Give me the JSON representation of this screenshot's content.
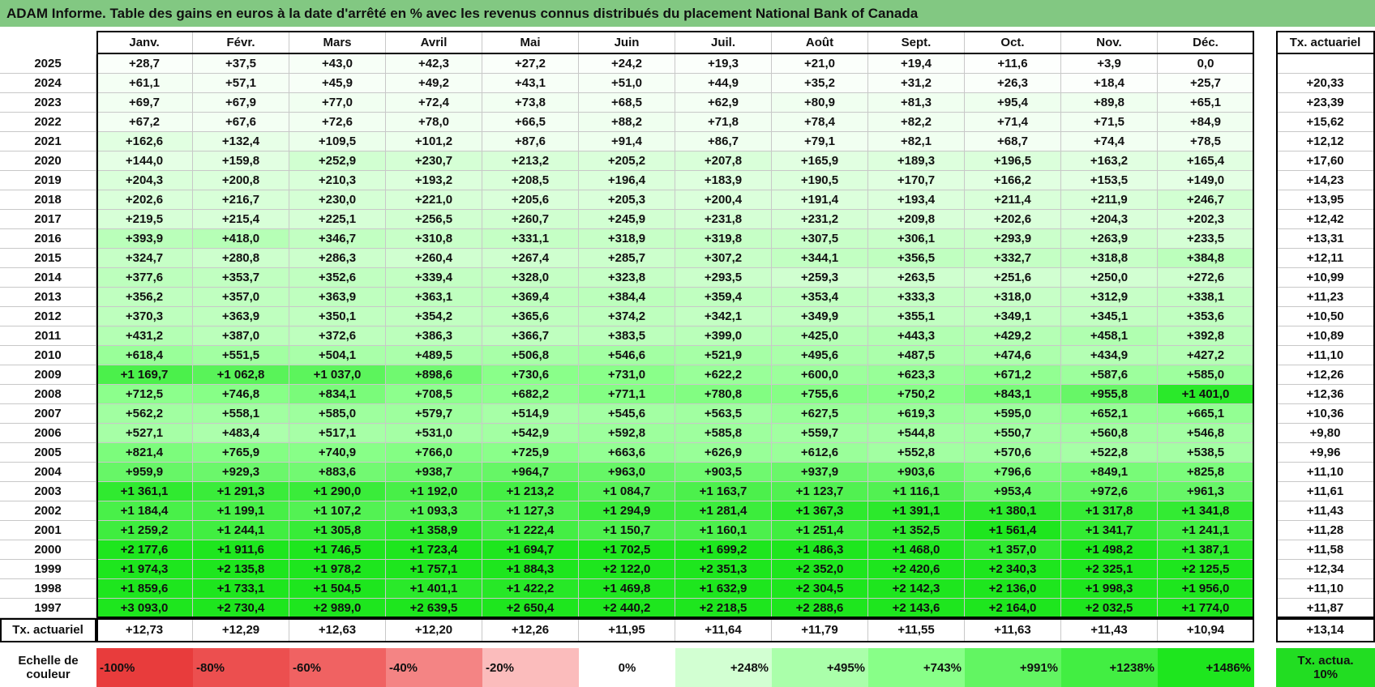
{
  "title": "ADAM Informe. Table des gains en euros à la date d'arrêté en % avec les revenus connus distribués du placement National Bank of Canada",
  "header": {
    "months": [
      "Janv.",
      "Févr.",
      "Mars",
      "Avril",
      "Mai",
      "Juin",
      "Juil.",
      "Août",
      "Sept.",
      "Oct.",
      "Nov.",
      "Déc."
    ],
    "rate_label": "Tx. actuariel"
  },
  "rows": [
    {
      "year": "2025",
      "values": [
        "+28,7",
        "+37,5",
        "+43,0",
        "+42,3",
        "+27,2",
        "+24,2",
        "+19,3",
        "+21,0",
        "+19,4",
        "+11,6",
        "+3,9",
        "0,0"
      ],
      "rate": null
    },
    {
      "year": "2024",
      "values": [
        "+61,1",
        "+57,1",
        "+45,9",
        "+49,2",
        "+43,1",
        "+51,0",
        "+44,9",
        "+35,2",
        "+31,2",
        "+26,3",
        "+18,4",
        "+25,7"
      ],
      "rate": "+20,33"
    },
    {
      "year": "2023",
      "values": [
        "+69,7",
        "+67,9",
        "+77,0",
        "+72,4",
        "+73,8",
        "+68,5",
        "+62,9",
        "+80,9",
        "+81,3",
        "+95,4",
        "+89,8",
        "+65,1"
      ],
      "rate": "+23,39"
    },
    {
      "year": "2022",
      "values": [
        "+67,2",
        "+67,6",
        "+72,6",
        "+78,0",
        "+66,5",
        "+88,2",
        "+71,8",
        "+78,4",
        "+82,2",
        "+71,4",
        "+71,5",
        "+84,9"
      ],
      "rate": "+15,62"
    },
    {
      "year": "2021",
      "values": [
        "+162,6",
        "+132,4",
        "+109,5",
        "+101,2",
        "+87,6",
        "+91,4",
        "+86,7",
        "+79,1",
        "+82,1",
        "+68,7",
        "+74,4",
        "+78,5"
      ],
      "rate": "+12,12"
    },
    {
      "year": "2020",
      "values": [
        "+144,0",
        "+159,8",
        "+252,9",
        "+230,7",
        "+213,2",
        "+205,2",
        "+207,8",
        "+165,9",
        "+189,3",
        "+196,5",
        "+163,2",
        "+165,4"
      ],
      "rate": "+17,60"
    },
    {
      "year": "2019",
      "values": [
        "+204,3",
        "+200,8",
        "+210,3",
        "+193,2",
        "+208,5",
        "+196,4",
        "+183,9",
        "+190,5",
        "+170,7",
        "+166,2",
        "+153,5",
        "+149,0"
      ],
      "rate": "+14,23"
    },
    {
      "year": "2018",
      "values": [
        "+202,6",
        "+216,7",
        "+230,0",
        "+221,0",
        "+205,6",
        "+205,3",
        "+200,4",
        "+191,4",
        "+193,4",
        "+211,4",
        "+211,9",
        "+246,7"
      ],
      "rate": "+13,95"
    },
    {
      "year": "2017",
      "values": [
        "+219,5",
        "+215,4",
        "+225,1",
        "+256,5",
        "+260,7",
        "+245,9",
        "+231,8",
        "+231,2",
        "+209,8",
        "+202,6",
        "+204,3",
        "+202,3"
      ],
      "rate": "+12,42"
    },
    {
      "year": "2016",
      "values": [
        "+393,9",
        "+418,0",
        "+346,7",
        "+310,8",
        "+331,1",
        "+318,9",
        "+319,8",
        "+307,5",
        "+306,1",
        "+293,9",
        "+263,9",
        "+233,5"
      ],
      "rate": "+13,31"
    },
    {
      "year": "2015",
      "values": [
        "+324,7",
        "+280,8",
        "+286,3",
        "+260,4",
        "+267,4",
        "+285,7",
        "+307,2",
        "+344,1",
        "+356,5",
        "+332,7",
        "+318,8",
        "+384,8"
      ],
      "rate": "+12,11"
    },
    {
      "year": "2014",
      "values": [
        "+377,6",
        "+353,7",
        "+352,6",
        "+339,4",
        "+328,0",
        "+323,8",
        "+293,5",
        "+259,3",
        "+263,5",
        "+251,6",
        "+250,0",
        "+272,6"
      ],
      "rate": "+10,99"
    },
    {
      "year": "2013",
      "values": [
        "+356,2",
        "+357,0",
        "+363,9",
        "+363,1",
        "+369,4",
        "+384,4",
        "+359,4",
        "+353,4",
        "+333,3",
        "+318,0",
        "+312,9",
        "+338,1"
      ],
      "rate": "+11,23"
    },
    {
      "year": "2012",
      "values": [
        "+370,3",
        "+363,9",
        "+350,1",
        "+354,2",
        "+365,6",
        "+374,2",
        "+342,1",
        "+349,9",
        "+355,1",
        "+349,1",
        "+345,1",
        "+353,6"
      ],
      "rate": "+10,50"
    },
    {
      "year": "2011",
      "values": [
        "+431,2",
        "+387,0",
        "+372,6",
        "+386,3",
        "+366,7",
        "+383,5",
        "+399,0",
        "+425,0",
        "+443,3",
        "+429,2",
        "+458,1",
        "+392,8"
      ],
      "rate": "+10,89"
    },
    {
      "year": "2010",
      "values": [
        "+618,4",
        "+551,5",
        "+504,1",
        "+489,5",
        "+506,8",
        "+546,6",
        "+521,9",
        "+495,6",
        "+487,5",
        "+474,6",
        "+434,9",
        "+427,2"
      ],
      "rate": "+11,10"
    },
    {
      "year": "2009",
      "values": [
        "+1 169,7",
        "+1 062,8",
        "+1 037,0",
        "+898,6",
        "+730,6",
        "+731,0",
        "+622,2",
        "+600,0",
        "+623,3",
        "+671,2",
        "+587,6",
        "+585,0"
      ],
      "rate": "+12,26"
    },
    {
      "year": "2008",
      "values": [
        "+712,5",
        "+746,8",
        "+834,1",
        "+708,5",
        "+682,2",
        "+771,1",
        "+780,8",
        "+755,6",
        "+750,2",
        "+843,1",
        "+955,8",
        "+1 401,0"
      ],
      "rate": "+12,36"
    },
    {
      "year": "2007",
      "values": [
        "+562,2",
        "+558,1",
        "+585,0",
        "+579,7",
        "+514,9",
        "+545,6",
        "+563,5",
        "+627,5",
        "+619,3",
        "+595,0",
        "+652,1",
        "+665,1"
      ],
      "rate": "+10,36"
    },
    {
      "year": "2006",
      "values": [
        "+527,1",
        "+483,4",
        "+517,1",
        "+531,0",
        "+542,9",
        "+592,8",
        "+585,8",
        "+559,7",
        "+544,8",
        "+550,7",
        "+560,8",
        "+546,8"
      ],
      "rate": "+9,80"
    },
    {
      "year": "2005",
      "values": [
        "+821,4",
        "+765,9",
        "+740,9",
        "+766,0",
        "+725,9",
        "+663,6",
        "+626,9",
        "+612,6",
        "+552,8",
        "+570,6",
        "+522,8",
        "+538,5"
      ],
      "rate": "+9,96"
    },
    {
      "year": "2004",
      "values": [
        "+959,9",
        "+929,3",
        "+883,6",
        "+938,7",
        "+964,7",
        "+963,0",
        "+903,5",
        "+937,9",
        "+903,6",
        "+796,6",
        "+849,1",
        "+825,8"
      ],
      "rate": "+11,10"
    },
    {
      "year": "2003",
      "values": [
        "+1 361,1",
        "+1 291,3",
        "+1 290,0",
        "+1 192,0",
        "+1 213,2",
        "+1 084,7",
        "+1 163,7",
        "+1 123,7",
        "+1 116,1",
        "+953,4",
        "+972,6",
        "+961,3"
      ],
      "rate": "+11,61"
    },
    {
      "year": "2002",
      "values": [
        "+1 184,4",
        "+1 199,1",
        "+1 107,2",
        "+1 093,3",
        "+1 127,3",
        "+1 294,9",
        "+1 281,4",
        "+1 367,3",
        "+1 391,1",
        "+1 380,1",
        "+1 317,8",
        "+1 341,8"
      ],
      "rate": "+11,43"
    },
    {
      "year": "2001",
      "values": [
        "+1 259,2",
        "+1 244,1",
        "+1 305,8",
        "+1 358,9",
        "+1 222,4",
        "+1 150,7",
        "+1 160,1",
        "+1 251,4",
        "+1 352,5",
        "+1 561,4",
        "+1 341,7",
        "+1 241,1"
      ],
      "rate": "+11,28"
    },
    {
      "year": "2000",
      "values": [
        "+2 177,6",
        "+1 911,6",
        "+1 746,5",
        "+1 723,4",
        "+1 694,7",
        "+1 702,5",
        "+1 699,2",
        "+1 486,3",
        "+1 468,0",
        "+1 357,0",
        "+1 498,2",
        "+1 387,1"
      ],
      "rate": "+11,58"
    },
    {
      "year": "1999",
      "values": [
        "+1 974,3",
        "+2 135,8",
        "+1 978,2",
        "+1 757,1",
        "+1 884,3",
        "+2 122,0",
        "+2 351,3",
        "+2 352,0",
        "+2 420,6",
        "+2 340,3",
        "+2 325,1",
        "+2 125,5"
      ],
      "rate": "+12,34"
    },
    {
      "year": "1998",
      "values": [
        "+1 859,6",
        "+1 733,1",
        "+1 504,5",
        "+1 401,1",
        "+1 422,2",
        "+1 469,8",
        "+1 632,9",
        "+2 304,5",
        "+2 142,3",
        "+2 136,0",
        "+1 998,3",
        "+1 956,0"
      ],
      "rate": "+11,10"
    },
    {
      "year": "1997",
      "values": [
        "+3 093,0",
        "+2 730,4",
        "+2 989,0",
        "+2 639,5",
        "+2 650,4",
        "+2 440,2",
        "+2 218,5",
        "+2 288,6",
        "+2 143,6",
        "+2 164,0",
        "+2 032,5",
        "+1 774,0"
      ],
      "rate": "+11,87"
    }
  ],
  "footer": {
    "label": "Tx. actuariel",
    "values": [
      "+12,73",
      "+12,29",
      "+12,63",
      "+12,20",
      "+12,26",
      "+11,95",
      "+11,64",
      "+11,79",
      "+11,55",
      "+11,63",
      "+11,43",
      "+10,94"
    ],
    "rate": "+13,14"
  },
  "scale": {
    "label": "Echelle de couleur",
    "items": [
      {
        "label": "-100%",
        "color": "#e83c3c"
      },
      {
        "label": "-80%",
        "color": "#ec4f4f"
      },
      {
        "label": "-60%",
        "color": "#f06262"
      },
      {
        "label": "-40%",
        "color": "#f48484"
      },
      {
        "label": "-20%",
        "color": "#fbbcbc"
      },
      {
        "label": "0%",
        "color": "#ffffff"
      },
      {
        "label": "+248%",
        "color": "#d2ffd2"
      },
      {
        "label": "+495%",
        "color": "#aaffaa"
      },
      {
        "label": "+743%",
        "color": "#88ff88"
      },
      {
        "label": "+991%",
        "color": "#62f562"
      },
      {
        "label": "+1238%",
        "color": "#42ee42"
      },
      {
        "label": "+1486%",
        "color": "#1ee61e"
      }
    ],
    "rate_label": "Tx. actua. 10%",
    "rate_color": "#22dd22"
  }
}
